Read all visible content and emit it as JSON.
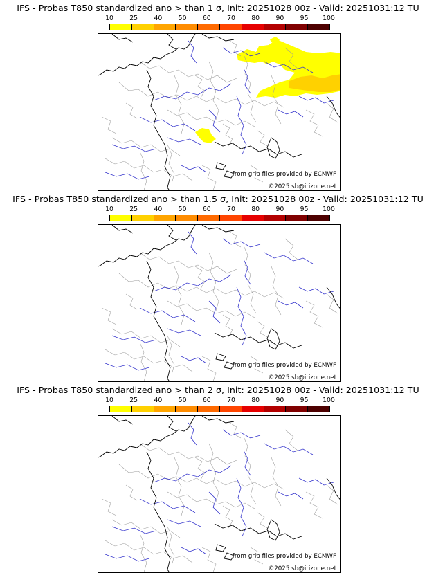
{
  "panels": [
    {
      "title": "IFS - Probas T850  standardized ano > than 1 σ, Init: 20251028 00z - Valid: 20251031:12 TU",
      "has_anomaly_shading": true
    },
    {
      "title": "IFS - Probas T850  standardized ano > than 1.5 σ, Init: 20251028 00z - Valid: 20251031:12 TU",
      "has_anomaly_shading": false
    },
    {
      "title": "IFS - Probas T850  standardized ano > than 2 σ, Init: 20251028 00z - Valid: 20251031:12 TU",
      "has_anomaly_shading": false
    }
  ],
  "colorbar": {
    "ticks": [
      "10",
      "25",
      "40",
      "50",
      "60",
      "70",
      "80",
      "90",
      "95",
      "100"
    ],
    "colors": [
      "#ffff00",
      "#ffd100",
      "#ffa500",
      "#ff8c00",
      "#ff6a00",
      "#ff4500",
      "#e60000",
      "#b30000",
      "#800000",
      "#4d0000"
    ]
  },
  "credits": {
    "source": "from grib files provided by ECMWF",
    "copyright": "©2025 sb@irizone.net"
  },
  "colors": {
    "rivers": "#3333cc",
    "borders": "#999999",
    "coast": "#000000",
    "prob_low": "#ffff00",
    "prob_mid": "#ffd100"
  }
}
